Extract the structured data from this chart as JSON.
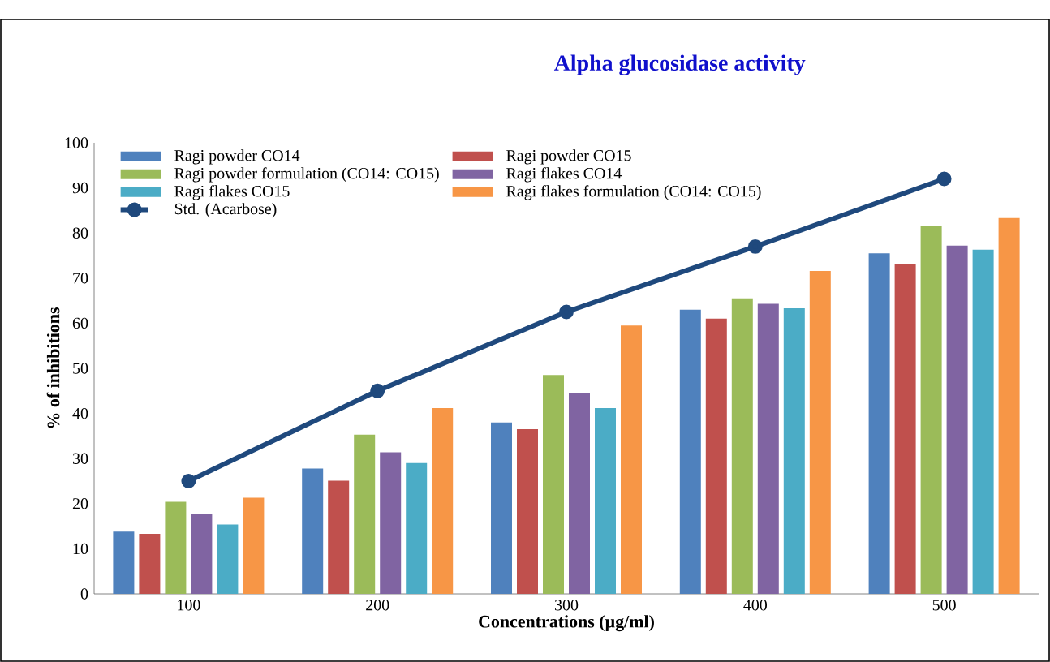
{
  "chart_data": {
    "type": "bar",
    "title": "Alpha glucosidase activity",
    "xlabel": "Concentrations (µg/ml)",
    "ylabel": "% of inhibitions",
    "categories": [
      "100",
      "200",
      "300",
      "400",
      "500"
    ],
    "series": [
      {
        "name": "Ragi powder CO14",
        "color": "#4f81bd",
        "values": [
          13.8,
          27.8,
          38,
          63,
          75.5
        ]
      },
      {
        "name": "Ragi powder CO15",
        "color": "#c0504d",
        "values": [
          13.3,
          25.1,
          36.5,
          61,
          73
        ]
      },
      {
        "name": "Ragi powder formulation  (CO14: CO15)",
        "color": "#9bbb59",
        "values": [
          20.4,
          35.3,
          48.5,
          65.5,
          81.5
        ]
      },
      {
        "name": "Ragi flakes CO14",
        "color": "#8064a2",
        "values": [
          17.7,
          31.4,
          44.5,
          64.3,
          77.2
        ]
      },
      {
        "name": "Ragi flakes CO15",
        "color": "#4bacc6",
        "values": [
          15.4,
          29,
          41.2,
          63.3,
          76.3
        ]
      },
      {
        "name": "Ragi flakes formulation  (CO14: CO15)",
        "color": "#f79646",
        "values": [
          21.3,
          41.2,
          59.5,
          71.6,
          83.3
        ]
      },
      {
        "name": "Std. (Acarbose)",
        "color": "#1f497d",
        "type": "line",
        "marker": "circle",
        "values": [
          25,
          45,
          62.5,
          77,
          92
        ]
      }
    ],
    "ylim": [
      0,
      100
    ],
    "yticks": [
      0,
      10,
      20,
      30,
      40,
      50,
      60,
      70,
      80,
      90,
      100
    ],
    "grid": false,
    "legend": "top left"
  }
}
